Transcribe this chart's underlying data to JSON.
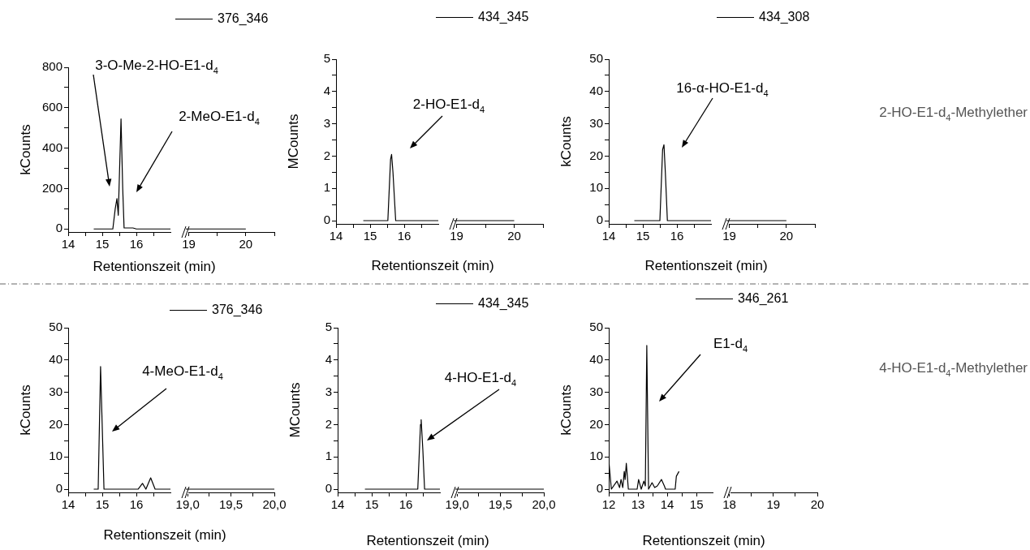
{
  "chart_data": [
    {
      "type": "line",
      "xlabel": "Retentionszeit (min)",
      "ylabel": "kCounts",
      "legend": "top",
      "xlim": [
        14,
        17
      ],
      "ylim": [
        -15,
        800
      ],
      "xticks": [
        14,
        15,
        16,
        {
          "value": 14.5,
          "label": null
        },
        {
          "value": 15.5,
          "label": null
        },
        {
          "value": 16.5,
          "label": null
        }
      ],
      "yticks": [
        0,
        200,
        400,
        600,
        800,
        {
          "value": 100,
          "label": null
        },
        {
          "value": 300,
          "label": null
        },
        {
          "value": 500,
          "label": null
        },
        {
          "value": 700,
          "label": null
        }
      ],
      "series": [
        {
          "name": "376_346",
          "color": "#000000",
          "x": [
            14.75,
            15.31,
            15.38,
            15.43,
            15.47,
            15.55,
            15.6,
            15.64,
            15.8,
            15.9,
            16.0,
            17.0
          ],
          "values": [
            0,
            0,
            100,
            150,
            68,
            545,
            200,
            5,
            5,
            5,
            0,
            0
          ]
        }
      ],
      "annotations": [
        "3-O-Me-2-HO-E1-d$_{4}$",
        "2-MeO-E1-d$_{4}$"
      ]
    },
    {
      "type": "line",
      "tick_labels": "x",
      "xlim": [
        18.95,
        20.5
      ],
      "ylim": [
        -15,
        800
      ],
      "xticks": [
        19,
        20,
        {
          "value": 19.5,
          "label": null
        },
        {
          "value": 20.5,
          "label": null
        }
      ],
      "series": [
        {
          "color": "#000000",
          "x": [
            18.95,
            20.0
          ],
          "values": [
            0,
            0
          ]
        }
      ]
    },
    {
      "type": "line",
      "xlabel": "Retentionszeit (min)",
      "ylabel": "MCounts",
      "legend": "top",
      "xlim": [
        14,
        17
      ],
      "ylim": [
        -0.1,
        5
      ],
      "xticks": [
        14,
        15,
        16,
        {
          "value": 14.5,
          "label": null
        },
        {
          "value": 15.5,
          "label": null
        },
        {
          "value": 16.5,
          "label": null
        }
      ],
      "yticks": [
        0,
        1,
        2,
        3,
        4,
        5,
        {
          "value": 0.5,
          "label": null
        },
        {
          "value": 1.5,
          "label": null
        },
        {
          "value": 2.5,
          "label": null
        },
        {
          "value": 3.5,
          "label": null
        },
        {
          "value": 4.5,
          "label": null
        }
      ],
      "series": [
        {
          "name": "434_345",
          "color": "#000000",
          "x": [
            14.8,
            15.52,
            15.6,
            15.63,
            15.67,
            15.75,
            17.0
          ],
          "values": [
            0,
            0,
            1.9,
            2.05,
            1.5,
            0,
            0
          ]
        }
      ],
      "annotations": [
        "2-HO-E1-d$_{4}$"
      ]
    },
    {
      "type": "line",
      "tick_labels": "x",
      "xlim": [
        18.95,
        20.5
      ],
      "ylim": [
        -0.1,
        5
      ],
      "xticks": [
        19,
        20,
        {
          "value": 19.5,
          "label": null
        },
        {
          "value": 20.5,
          "label": null
        }
      ],
      "series": [
        {
          "color": "#000000",
          "x": [
            18.95,
            20.0
          ],
          "values": [
            0,
            0
          ]
        }
      ]
    },
    {
      "type": "line",
      "xlabel": "Retentionszeit (min)",
      "ylabel": "kCounts",
      "legend": "top",
      "xlim": [
        14,
        17
      ],
      "ylim": [
        -1,
        50
      ],
      "xticks": [
        14,
        15,
        16,
        {
          "value": 14.5,
          "label": null
        },
        {
          "value": 15.5,
          "label": null
        },
        {
          "value": 16.5,
          "label": null
        }
      ],
      "yticks": [
        0,
        10,
        20,
        30,
        40,
        50,
        {
          "value": 5,
          "label": null
        },
        {
          "value": 15,
          "label": null
        },
        {
          "value": 25,
          "label": null
        },
        {
          "value": 35,
          "label": null
        },
        {
          "value": 45,
          "label": null
        }
      ],
      "series": [
        {
          "name": "434_308",
          "color": "#000000",
          "x": [
            14.75,
            15.5,
            15.58,
            15.62,
            15.66,
            15.72,
            17.0
          ],
          "values": [
            0,
            0,
            22,
            23.5,
            15,
            0,
            0
          ]
        }
      ],
      "annotations": [
        "16-α-HO-E1-d$_{4}$"
      ]
    },
    {
      "type": "line",
      "tick_labels": "x",
      "xlim": [
        18.95,
        20.5
      ],
      "ylim": [
        -1,
        50
      ],
      "xticks": [
        19,
        20,
        {
          "value": 19.5,
          "label": null
        },
        {
          "value": 20.5,
          "label": null
        }
      ],
      "series": [
        {
          "color": "#000000",
          "x": [
            18.95,
            20.0
          ],
          "values": [
            0,
            0
          ]
        }
      ],
      "annotations": [
        "2-HO-E1-d$_{4}$-Methylether"
      ]
    },
    {
      "type": "line",
      "xlabel": "Retentionszeit (min)",
      "ylabel": "kCounts",
      "legend": "top",
      "xlim": [
        14,
        17
      ],
      "ylim": [
        -1,
        50
      ],
      "xticks": [
        14,
        15,
        16,
        {
          "value": 14.5,
          "label": null
        },
        {
          "value": 15.5,
          "label": null
        },
        {
          "value": 16.5,
          "label": null
        }
      ],
      "yticks": [
        0,
        10,
        20,
        30,
        40,
        50,
        {
          "value": 5,
          "label": null
        },
        {
          "value": 15,
          "label": null
        },
        {
          "value": 25,
          "label": null
        },
        {
          "value": 35,
          "label": null
        },
        {
          "value": 45,
          "label": null
        }
      ],
      "series": [
        {
          "name": "376_346",
          "color": "#000000",
          "x": [
            14.75,
            14.88,
            14.95,
            15.05,
            16.05,
            16.18,
            16.28,
            16.42,
            16.55,
            17.0
          ],
          "values": [
            0,
            0,
            38,
            0,
            0,
            1.8,
            0,
            3.5,
            0,
            0
          ]
        }
      ],
      "annotations": [
        "4-MeO-E1-d$_{4}$"
      ]
    },
    {
      "type": "line",
      "tick_labels": "x",
      "xlim": [
        18.98,
        20.0
      ],
      "ylim": [
        -1,
        50
      ],
      "xticks": [
        {
          "value": 19,
          "label": "19,0"
        },
        {
          "value": 19.5,
          "label": "19,5"
        },
        {
          "value": 20,
          "label": "20,0"
        },
        {
          "value": 19.25,
          "label": null
        },
        {
          "value": 19.75,
          "label": null
        }
      ],
      "series": [
        {
          "color": "#000000",
          "x": [
            18.98,
            20.0
          ],
          "values": [
            0,
            0
          ]
        }
      ]
    },
    {
      "type": "line",
      "xlabel": "Retentionszeit (min)",
      "ylabel": "MCounts",
      "legend": "top",
      "xlim": [
        14,
        17
      ],
      "ylim": [
        -0.1,
        5
      ],
      "xticks": [
        14,
        15,
        16,
        {
          "value": 14.5,
          "label": null
        },
        {
          "value": 15.5,
          "label": null
        },
        {
          "value": 16.5,
          "label": null
        }
      ],
      "yticks": [
        0,
        1,
        2,
        3,
        4,
        5,
        {
          "value": 0.5,
          "label": null
        },
        {
          "value": 1.5,
          "label": null
        },
        {
          "value": 2.5,
          "label": null
        },
        {
          "value": 3.5,
          "label": null
        },
        {
          "value": 4.5,
          "label": null
        }
      ],
      "series": [
        {
          "name": "434_345",
          "color": "#000000",
          "x": [
            14.8,
            16.35,
            16.43,
            16.45,
            16.5,
            16.55,
            17.0
          ],
          "values": [
            0,
            0,
            2,
            2.15,
            1.2,
            0,
            0
          ]
        }
      ],
      "annotations": [
        "4-HO-E1-d$_{4}$"
      ]
    },
    {
      "type": "line",
      "tick_labels": "x",
      "xlim": [
        18.98,
        20.0
      ],
      "ylim": [
        -0.1,
        5
      ],
      "xticks": [
        {
          "value": 19,
          "label": "19,0"
        },
        {
          "value": 19.5,
          "label": "19,5"
        },
        {
          "value": 20,
          "label": "20,0"
        },
        {
          "value": 19.25,
          "label": null
        },
        {
          "value": 19.75,
          "label": null
        }
      ],
      "series": [
        {
          "color": "#000000",
          "x": [
            18.98,
            20.0
          ],
          "values": [
            0,
            0
          ]
        }
      ]
    },
    {
      "type": "line",
      "xlabel": "Retentionszeit (min)",
      "ylabel": "kCounts",
      "legend": "top",
      "xlim": [
        12,
        15.55
      ],
      "ylim": [
        -1,
        50
      ],
      "xticks": [
        12,
        13,
        14,
        15,
        {
          "value": 12.5,
          "label": null
        },
        {
          "value": 13.5,
          "label": null
        },
        {
          "value": 14.5,
          "label": null
        }
      ],
      "yticks": [
        0,
        10,
        20,
        30,
        40,
        50,
        {
          "value": 5,
          "label": null
        },
        {
          "value": 15,
          "label": null
        },
        {
          "value": 25,
          "label": null
        },
        {
          "value": 35,
          "label": null
        },
        {
          "value": 45,
          "label": null
        }
      ],
      "series": [
        {
          "name": "346_261",
          "color": "#000000",
          "x": [
            12.0,
            12.09,
            12.28,
            12.37,
            12.42,
            12.48,
            12.53,
            12.56,
            12.6,
            12.67,
            12.97,
            13.02,
            13.11,
            13.2,
            13.25,
            13.3,
            13.36,
            13.48,
            13.57,
            13.66,
            13.8,
            13.9,
            13.94,
            14.27,
            14.31,
            14.4
          ],
          "values": [
            9,
            0,
            2.5,
            0.5,
            3,
            0.5,
            5.5,
            3,
            8,
            0,
            0,
            3,
            0,
            2.5,
            1,
            44.5,
            0,
            2,
            0.5,
            1,
            3,
            1,
            0,
            0,
            4,
            5.5
          ]
        }
      ],
      "annotations": [
        "E1-d$_{4}$"
      ]
    },
    {
      "type": "line",
      "tick_labels": "x",
      "xlim": [
        17.97,
        20
      ],
      "ylim": [
        -1,
        50
      ],
      "xticks": [
        18,
        19,
        20,
        {
          "value": 18.5,
          "label": null
        },
        {
          "value": 19.5,
          "label": null
        }
      ],
      "annotations": [
        "4-HO-E1-d$_{4}$-Methylether"
      ]
    }
  ]
}
